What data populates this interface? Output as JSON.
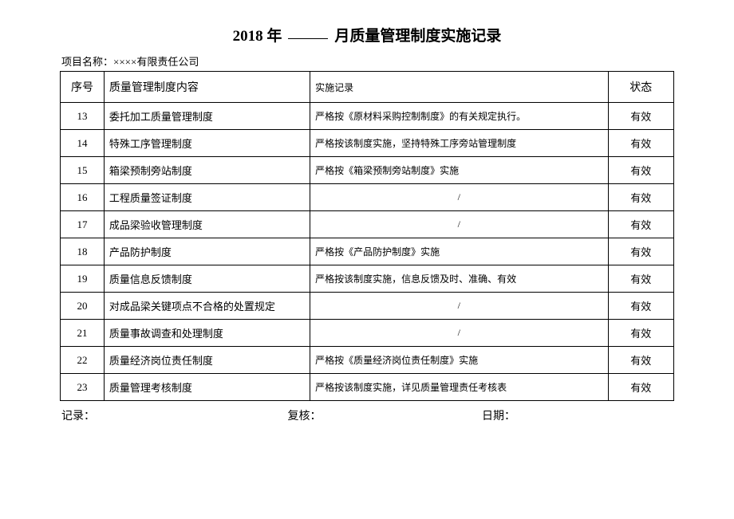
{
  "title": {
    "prefix": "2018 年",
    "suffix": "月质量管理制度实施记录"
  },
  "project_name_label": "项目名称：",
  "project_name_value": "××××有限责任公司",
  "headers": {
    "seq": "序号",
    "content": "质量管理制度内容",
    "record": "实施记录",
    "status": "状态"
  },
  "rows": [
    {
      "seq": "13",
      "content": "委托加工质量管理制度",
      "record": "严格按《原材料采购控制制度》的有关规定执行。",
      "status": "有效",
      "slash": false
    },
    {
      "seq": "14",
      "content": "特殊工序管理制度",
      "record": "严格按该制度实施，坚持特殊工序旁站管理制度",
      "status": "有效",
      "slash": false
    },
    {
      "seq": "15",
      "content": "箱梁预制旁站制度",
      "record": "严格按《箱梁预制旁站制度》实施",
      "status": "有效",
      "slash": false
    },
    {
      "seq": "16",
      "content": "工程质量签证制度",
      "record": "/",
      "status": "有效",
      "slash": true
    },
    {
      "seq": "17",
      "content": "成品梁验收管理制度",
      "record": "/",
      "status": "有效",
      "slash": true
    },
    {
      "seq": "18",
      "content": "产品防护制度",
      "record": "严格按《产品防护制度》实施",
      "status": "有效",
      "slash": false
    },
    {
      "seq": "19",
      "content": "质量信息反馈制度",
      "record": "严格按该制度实施，信息反馈及时、准确、有效",
      "status": "有效",
      "slash": false
    },
    {
      "seq": "20",
      "content": "对成品梁关键项点不合格的处置规定",
      "record": "/",
      "status": "有效",
      "slash": true
    },
    {
      "seq": "21",
      "content": "质量事故调查和处理制度",
      "record": "/",
      "status": "有效",
      "slash": true
    },
    {
      "seq": "22",
      "content": "质量经济岗位责任制度",
      "record": "严格按《质量经济岗位责任制度》实施",
      "status": "有效",
      "slash": false
    },
    {
      "seq": "23",
      "content": "质量管理考核制度",
      "record": "严格按该制度实施，详见质量管理责任考核表",
      "status": "有效",
      "slash": false
    }
  ],
  "footer": {
    "recorder": "记录：",
    "reviewer": "复核：",
    "date": "日期："
  }
}
